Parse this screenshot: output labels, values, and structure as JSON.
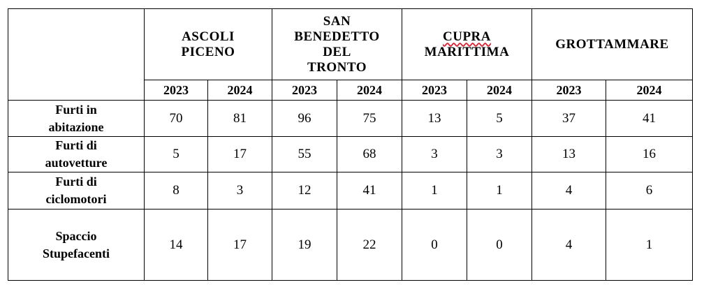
{
  "header": {
    "municipalities": [
      {
        "lines": [
          "ASCOLI",
          "PICENO"
        ]
      },
      {
        "lines": [
          "SAN",
          "BENEDETTO",
          "DEL",
          "TRONTO"
        ]
      },
      {
        "lines": [
          "CUPRA",
          "MARITTIMA"
        ]
      },
      {
        "lines": [
          "GROTTAMMARE"
        ]
      }
    ],
    "years": [
      "2023",
      "2024",
      "2023",
      "2024",
      "2023",
      "2024",
      "2023",
      "2024"
    ]
  },
  "rows": [
    {
      "label_lines": [
        "Furti in",
        "abitazione"
      ],
      "values": [
        "70",
        "81",
        "96",
        "75",
        "13",
        "5",
        "37",
        "41"
      ]
    },
    {
      "label_lines": [
        "Furti di",
        "autovetture"
      ],
      "values": [
        "5",
        "17",
        "55",
        "68",
        "3",
        "3",
        "13",
        "16"
      ]
    },
    {
      "label_lines": [
        "Furti di",
        "ciclomotori"
      ],
      "values": [
        "8",
        "3",
        "12",
        "41",
        "1",
        "1",
        "4",
        "6"
      ]
    },
    {
      "label_lines": [
        "Spaccio",
        "Stupefacenti"
      ],
      "values": [
        "14",
        "17",
        "19",
        "22",
        "0",
        "0",
        "4",
        "1"
      ]
    }
  ]
}
